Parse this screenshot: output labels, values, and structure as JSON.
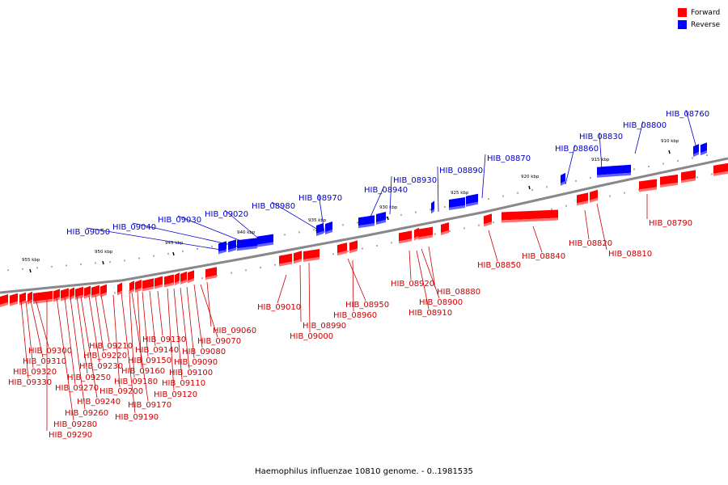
{
  "caption": "Haemophilus influenzae 10810 genome. - 0..1981535",
  "legend": [
    {
      "label": "Forward",
      "color": "#ff0000"
    },
    {
      "label": "Reverse",
      "color": "#0000ff"
    }
  ],
  "colors": {
    "forward": "#ff0000",
    "reverse": "#0000ff",
    "axis": "#888888",
    "label_forward": "#cc0000",
    "label_reverse": "#0000cc"
  },
  "scale_labels": [
    "955 kbp",
    "950 kbp",
    "945 kbp",
    "940 kbp",
    "935 kbp",
    "930 kbp",
    "925 kbp",
    "920 kbp",
    "915 kbp",
    "910 kbp"
  ],
  "reverse_genes": [
    "HIB_08760",
    "HIB_08800",
    "HIB_08830",
    "HIB_08860",
    "HIB_08870",
    "HIB_08890",
    "HIB_08930",
    "HIB_08940",
    "HIB_08970",
    "HIB_08980",
    "HIB_09020",
    "HIB_09030",
    "HIB_09040",
    "HIB_09050"
  ],
  "forward_genes_right": [
    "HIB_08790",
    "HIB_08810",
    "HIB_08820",
    "HIB_08840",
    "HIB_08850",
    "HIB_08880",
    "HIB_08900",
    "HIB_08910",
    "HIB_08920",
    "HIB_08950",
    "HIB_08960",
    "HIB_08990",
    "HIB_09000",
    "HIB_09010",
    "HIB_09060",
    "HIB_09070",
    "HIB_09080",
    "HIB_09090",
    "HIB_09100",
    "HIB_09110",
    "HIB_09120"
  ],
  "forward_genes_left": [
    "HIB_09130",
    "HIB_09140",
    "HIB_09150",
    "HIB_09160",
    "HIB_09170",
    "HIB_09180",
    "HIB_09190",
    "HIB_09200",
    "HIB_09210",
    "HIB_09220",
    "HIB_09230",
    "HIB_09240",
    "HIB_09250",
    "HIB_09260",
    "HIB_09270",
    "HIB_09280",
    "HIB_09290",
    "HIB_09300",
    "HIB_09310",
    "HIB_09320",
    "HIB_09330"
  ]
}
